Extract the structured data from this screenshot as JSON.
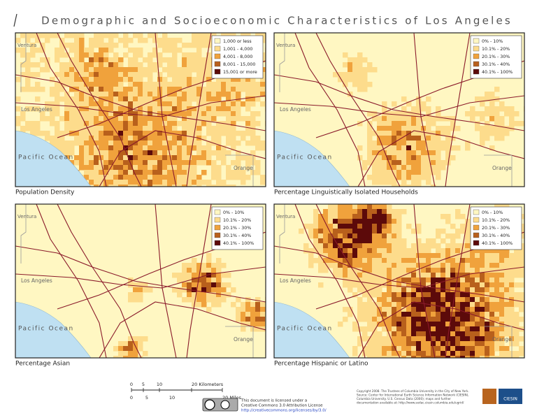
{
  "title": "Demographic and Socioeconomic Characteristics of Los Angeles",
  "place_labels": {
    "ventura": "Ventura",
    "los_angeles": "Los Angeles",
    "ocean": "Pacific Ocean",
    "orange": "Orange"
  },
  "maps": [
    {
      "caption": "Population Density",
      "legend": [
        {
          "label": "1,000 or less",
          "color": "#fff7c2"
        },
        {
          "label": "1,001 - 4,000",
          "color": "#fddc8c"
        },
        {
          "label": "4,001 - 8,000",
          "color": "#f0a23c"
        },
        {
          "label": "8,001 - 15,000",
          "color": "#b8601c"
        },
        {
          "label": "15,001 or more",
          "color": "#5c0a0a"
        }
      ]
    },
    {
      "caption": "Percentage Linguistically Isolated Households",
      "legend": [
        {
          "label": "0% - 10%",
          "color": "#fff7c2"
        },
        {
          "label": "10.1% - 20%",
          "color": "#fddc8c"
        },
        {
          "label": "20.1% - 30%",
          "color": "#f0a23c"
        },
        {
          "label": "30.1% - 40%",
          "color": "#b8601c"
        },
        {
          "label": "40.1% - 100%",
          "color": "#5c0a0a"
        }
      ]
    },
    {
      "caption": "Percentage Asian",
      "legend": [
        {
          "label": "0% - 10%",
          "color": "#fff7c2"
        },
        {
          "label": "10.1% - 20%",
          "color": "#fddc8c"
        },
        {
          "label": "20.1% - 30%",
          "color": "#f0a23c"
        },
        {
          "label": "30.1% - 40%",
          "color": "#b8601c"
        },
        {
          "label": "40.1% - 100%",
          "color": "#5c0a0a"
        }
      ]
    },
    {
      "caption": "Percentage Hispanic or Latino",
      "legend": [
        {
          "label": "0% - 10%",
          "color": "#fff7c2"
        },
        {
          "label": "10.1% - 20%",
          "color": "#fddc8c"
        },
        {
          "label": "20.1% - 30%",
          "color": "#f0a23c"
        },
        {
          "label": "30.1% - 40%",
          "color": "#b8601c"
        },
        {
          "label": "40.1% - 100%",
          "color": "#5c0a0a"
        }
      ]
    }
  ],
  "scale": {
    "km": [
      "0",
      "5",
      "10",
      "20 Kilometers"
    ],
    "miles": [
      "0",
      "5",
      "10",
      "20 Miles"
    ]
  },
  "license": [
    "This document is licensed under a",
    "Creative Commons 3.0 Attribution License",
    "http://creativecommons.org/licenses/by/3.0/"
  ],
  "copyright": [
    "Copyright 2008. The Trustees of Columbia University in the City of New York.",
    "Source: Center for International Earth Science Information Network (CIESIN),",
    "Columbia University. U.S. Census Data (2000); maps and further",
    "documentation available at: http://www.sedac.ciesin.columbia.edu/ugrid/"
  ],
  "logo": "CIESIN"
}
